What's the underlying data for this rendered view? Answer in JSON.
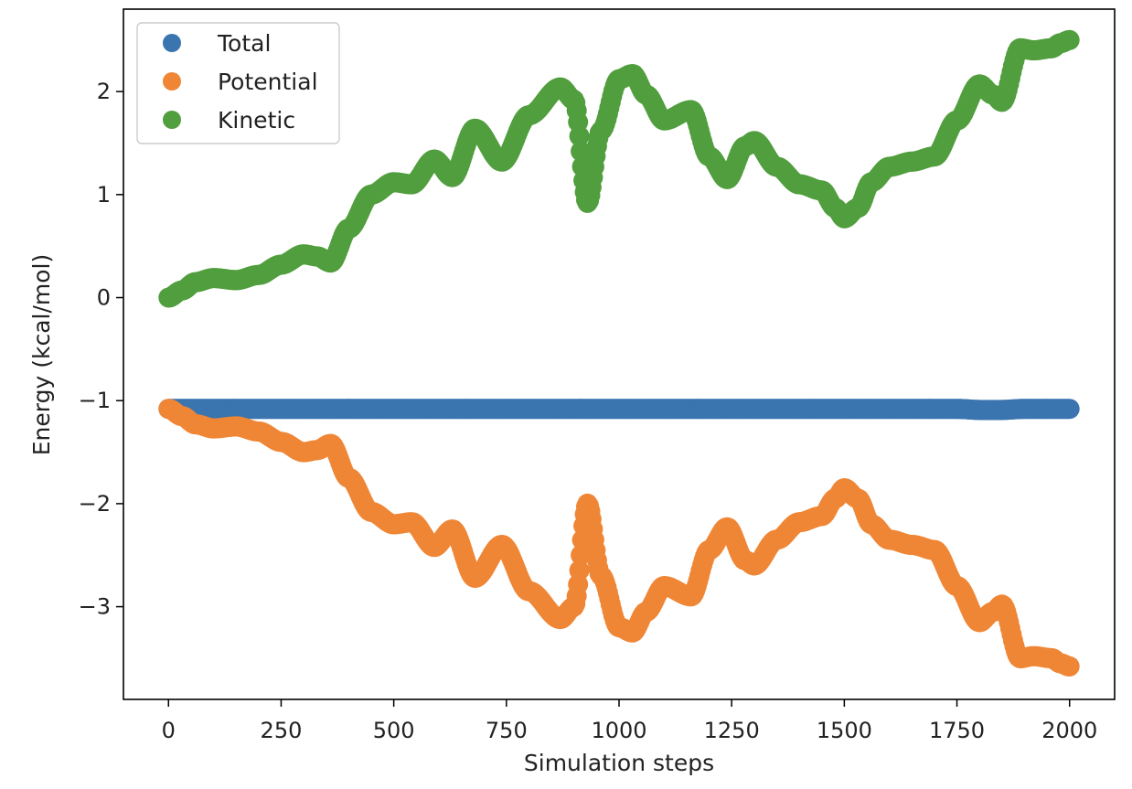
{
  "chart_data": {
    "type": "scatter",
    "title": "",
    "xlabel": "Simulation steps",
    "ylabel": "Energy (kcal/mol)",
    "xlim": [
      -100,
      2100
    ],
    "ylim": [
      -3.9,
      2.8
    ],
    "xticks": [
      0,
      250,
      500,
      750,
      1000,
      1250,
      1500,
      1750,
      2000
    ],
    "xtick_labels": [
      "0",
      "250",
      "500",
      "750",
      "1000",
      "1250",
      "1500",
      "1750",
      "2000"
    ],
    "yticks": [
      -3,
      -2,
      -1,
      0,
      1,
      2
    ],
    "ytick_labels": [
      "−3",
      "−2",
      "−1",
      "0",
      "1",
      "2"
    ],
    "grid": false,
    "legend_position": "top-left",
    "series": [
      {
        "name": "Total",
        "color": "#3b75af",
        "x": [
          0,
          250,
          500,
          750,
          1000,
          1250,
          1500,
          1750,
          1800,
          1850,
          1900,
          2000
        ],
        "y": [
          -1.08,
          -1.08,
          -1.08,
          -1.08,
          -1.08,
          -1.08,
          -1.08,
          -1.08,
          -1.09,
          -1.09,
          -1.08,
          -1.08
        ]
      },
      {
        "name": "Potential",
        "color": "#ef8636",
        "x": [
          0,
          30,
          60,
          100,
          150,
          200,
          250,
          300,
          330,
          360,
          400,
          450,
          500,
          540,
          590,
          630,
          680,
          740,
          800,
          870,
          900,
          930,
          960,
          1000,
          1030,
          1060,
          1100,
          1160,
          1200,
          1240,
          1280,
          1300,
          1350,
          1400,
          1450,
          1480,
          1500,
          1530,
          1560,
          1600,
          1650,
          1700,
          1750,
          1800,
          1830,
          1850,
          1890,
          1920,
          1960,
          1980,
          2000
        ],
        "y": [
          -1.08,
          -1.15,
          -1.23,
          -1.27,
          -1.25,
          -1.3,
          -1.4,
          -1.5,
          -1.48,
          -1.42,
          -1.75,
          -2.08,
          -2.2,
          -2.18,
          -2.42,
          -2.25,
          -2.72,
          -2.4,
          -2.85,
          -3.12,
          -3.0,
          -2.0,
          -2.7,
          -3.2,
          -3.25,
          -3.05,
          -2.8,
          -2.9,
          -2.45,
          -2.23,
          -2.55,
          -2.6,
          -2.35,
          -2.18,
          -2.12,
          -1.95,
          -1.85,
          -1.95,
          -2.2,
          -2.35,
          -2.4,
          -2.45,
          -2.8,
          -3.15,
          -3.05,
          -2.98,
          -3.5,
          -3.48,
          -3.5,
          -3.55,
          -3.58
        ]
      },
      {
        "name": "Kinetic",
        "color": "#519e3e",
        "x": [
          0,
          30,
          60,
          100,
          150,
          200,
          250,
          300,
          330,
          360,
          400,
          450,
          500,
          540,
          590,
          630,
          680,
          740,
          800,
          870,
          900,
          930,
          960,
          1000,
          1030,
          1060,
          1100,
          1160,
          1200,
          1240,
          1280,
          1300,
          1350,
          1400,
          1450,
          1480,
          1500,
          1530,
          1560,
          1600,
          1650,
          1700,
          1750,
          1800,
          1830,
          1850,
          1890,
          1920,
          1960,
          1980,
          2000
        ],
        "y": [
          0.0,
          0.07,
          0.15,
          0.19,
          0.17,
          0.22,
          0.32,
          0.42,
          0.4,
          0.34,
          0.67,
          1.0,
          1.12,
          1.1,
          1.34,
          1.17,
          1.64,
          1.32,
          1.77,
          2.04,
          1.92,
          0.92,
          1.62,
          2.12,
          2.17,
          1.97,
          1.72,
          1.82,
          1.37,
          1.15,
          1.47,
          1.52,
          1.27,
          1.1,
          1.04,
          0.87,
          0.77,
          0.87,
          1.12,
          1.27,
          1.32,
          1.37,
          1.72,
          2.07,
          1.97,
          1.9,
          2.42,
          2.4,
          2.42,
          2.47,
          2.5
        ]
      }
    ]
  }
}
